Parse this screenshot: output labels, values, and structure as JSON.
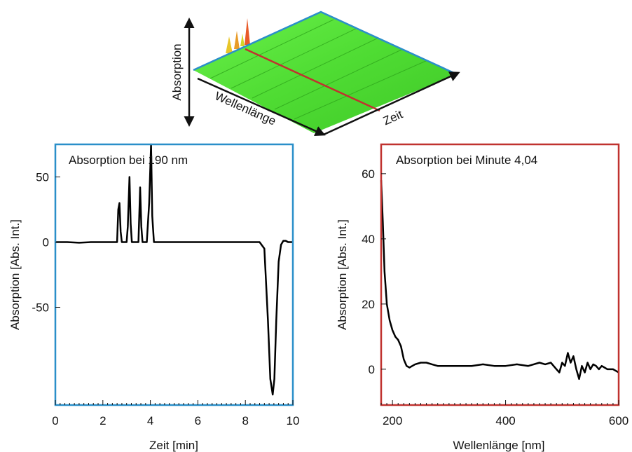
{
  "colors": {
    "left_frame": "#2a8fc9",
    "right_frame": "#c0322f",
    "surface_green": "#55e63a",
    "surface_edge": "#2a8fc9",
    "cut_line": "#c0322f",
    "trace": "#000000"
  },
  "surface": {
    "label_absorption": "Absorption",
    "label_wavelength": "Wellenlänge",
    "label_time": "Zeit"
  },
  "chart_data": [
    {
      "type": "line",
      "title": "Absorption bei 190 nm",
      "xlabel": "Zeit [min]",
      "ylabel": "Absorption [Abs. Int.]",
      "xlim": [
        0,
        10
      ],
      "ylim": [
        -125,
        75
      ],
      "xticks": [
        0,
        2,
        4,
        6,
        8,
        10
      ],
      "xtick_labels": [
        "0",
        "2",
        "4",
        "6",
        "8",
        "10"
      ],
      "yticks": [
        50,
        0,
        -50
      ],
      "ytick_labels": [
        "50",
        "0",
        "-50"
      ],
      "series": [
        {
          "x": [
            0.0,
            0.5,
            1.0,
            1.5,
            2.0,
            2.5,
            2.6,
            2.65,
            2.7,
            2.75,
            2.8,
            2.9,
            3.0,
            3.05,
            3.12,
            3.17,
            3.22,
            3.3,
            3.4,
            3.5,
            3.57,
            3.62,
            3.67,
            3.75,
            3.85,
            3.95,
            4.03,
            4.08,
            4.15,
            4.25,
            4.5,
            5.0,
            6.0,
            7.0,
            8.0,
            8.6,
            8.8,
            8.95,
            9.05,
            9.15,
            9.22,
            9.3,
            9.4,
            9.5,
            9.6,
            9.7,
            9.8,
            10.0
          ],
          "y": [
            0,
            0,
            -0.5,
            0,
            0,
            0,
            0,
            25,
            30,
            8,
            0,
            0,
            0,
            12,
            50,
            14,
            0,
            0,
            0,
            0,
            42,
            12,
            0,
            0,
            0,
            30,
            75,
            20,
            0,
            0,
            0,
            0,
            0,
            0,
            0,
            0,
            -5,
            -60,
            -105,
            -117,
            -105,
            -60,
            -15,
            -2,
            1,
            1,
            0,
            0
          ]
        }
      ]
    },
    {
      "type": "line",
      "title": "Absorption bei Minute 4,04",
      "xlabel": "Wellenlänge [nm]",
      "ylabel": "Absorption [Abs. Int.]",
      "xlim": [
        180,
        600
      ],
      "ylim": [
        -11,
        69
      ],
      "xticks": [
        200,
        400,
        600
      ],
      "xtick_labels": [
        "200",
        "400",
        "600"
      ],
      "yticks": [
        0,
        20,
        40,
        60
      ],
      "ytick_labels": [
        "0",
        "20",
        "40",
        "60"
      ],
      "series": [
        {
          "x": [
            180,
            183,
            186,
            190,
            195,
            200,
            205,
            210,
            215,
            220,
            225,
            230,
            235,
            240,
            250,
            260,
            270,
            280,
            290,
            300,
            320,
            340,
            360,
            380,
            400,
            420,
            440,
            460,
            470,
            480,
            490,
            495,
            500,
            505,
            510,
            515,
            520,
            525,
            530,
            535,
            540,
            545,
            550,
            555,
            560,
            565,
            570,
            575,
            580,
            585,
            590,
            595,
            600
          ],
          "y": [
            58,
            45,
            30,
            20,
            15,
            12,
            10,
            9,
            7,
            3,
            1,
            0.5,
            1,
            1.5,
            2,
            2,
            1.5,
            1,
            1,
            1,
            1,
            1,
            1.5,
            1,
            1,
            1.5,
            1,
            2,
            1.5,
            2,
            0,
            -1,
            2,
            1,
            5,
            2,
            4,
            0,
            -3,
            1,
            -1,
            2,
            0,
            1.5,
            1,
            0,
            1,
            0.5,
            0,
            0,
            0,
            -0.5,
            -1
          ]
        }
      ]
    }
  ]
}
